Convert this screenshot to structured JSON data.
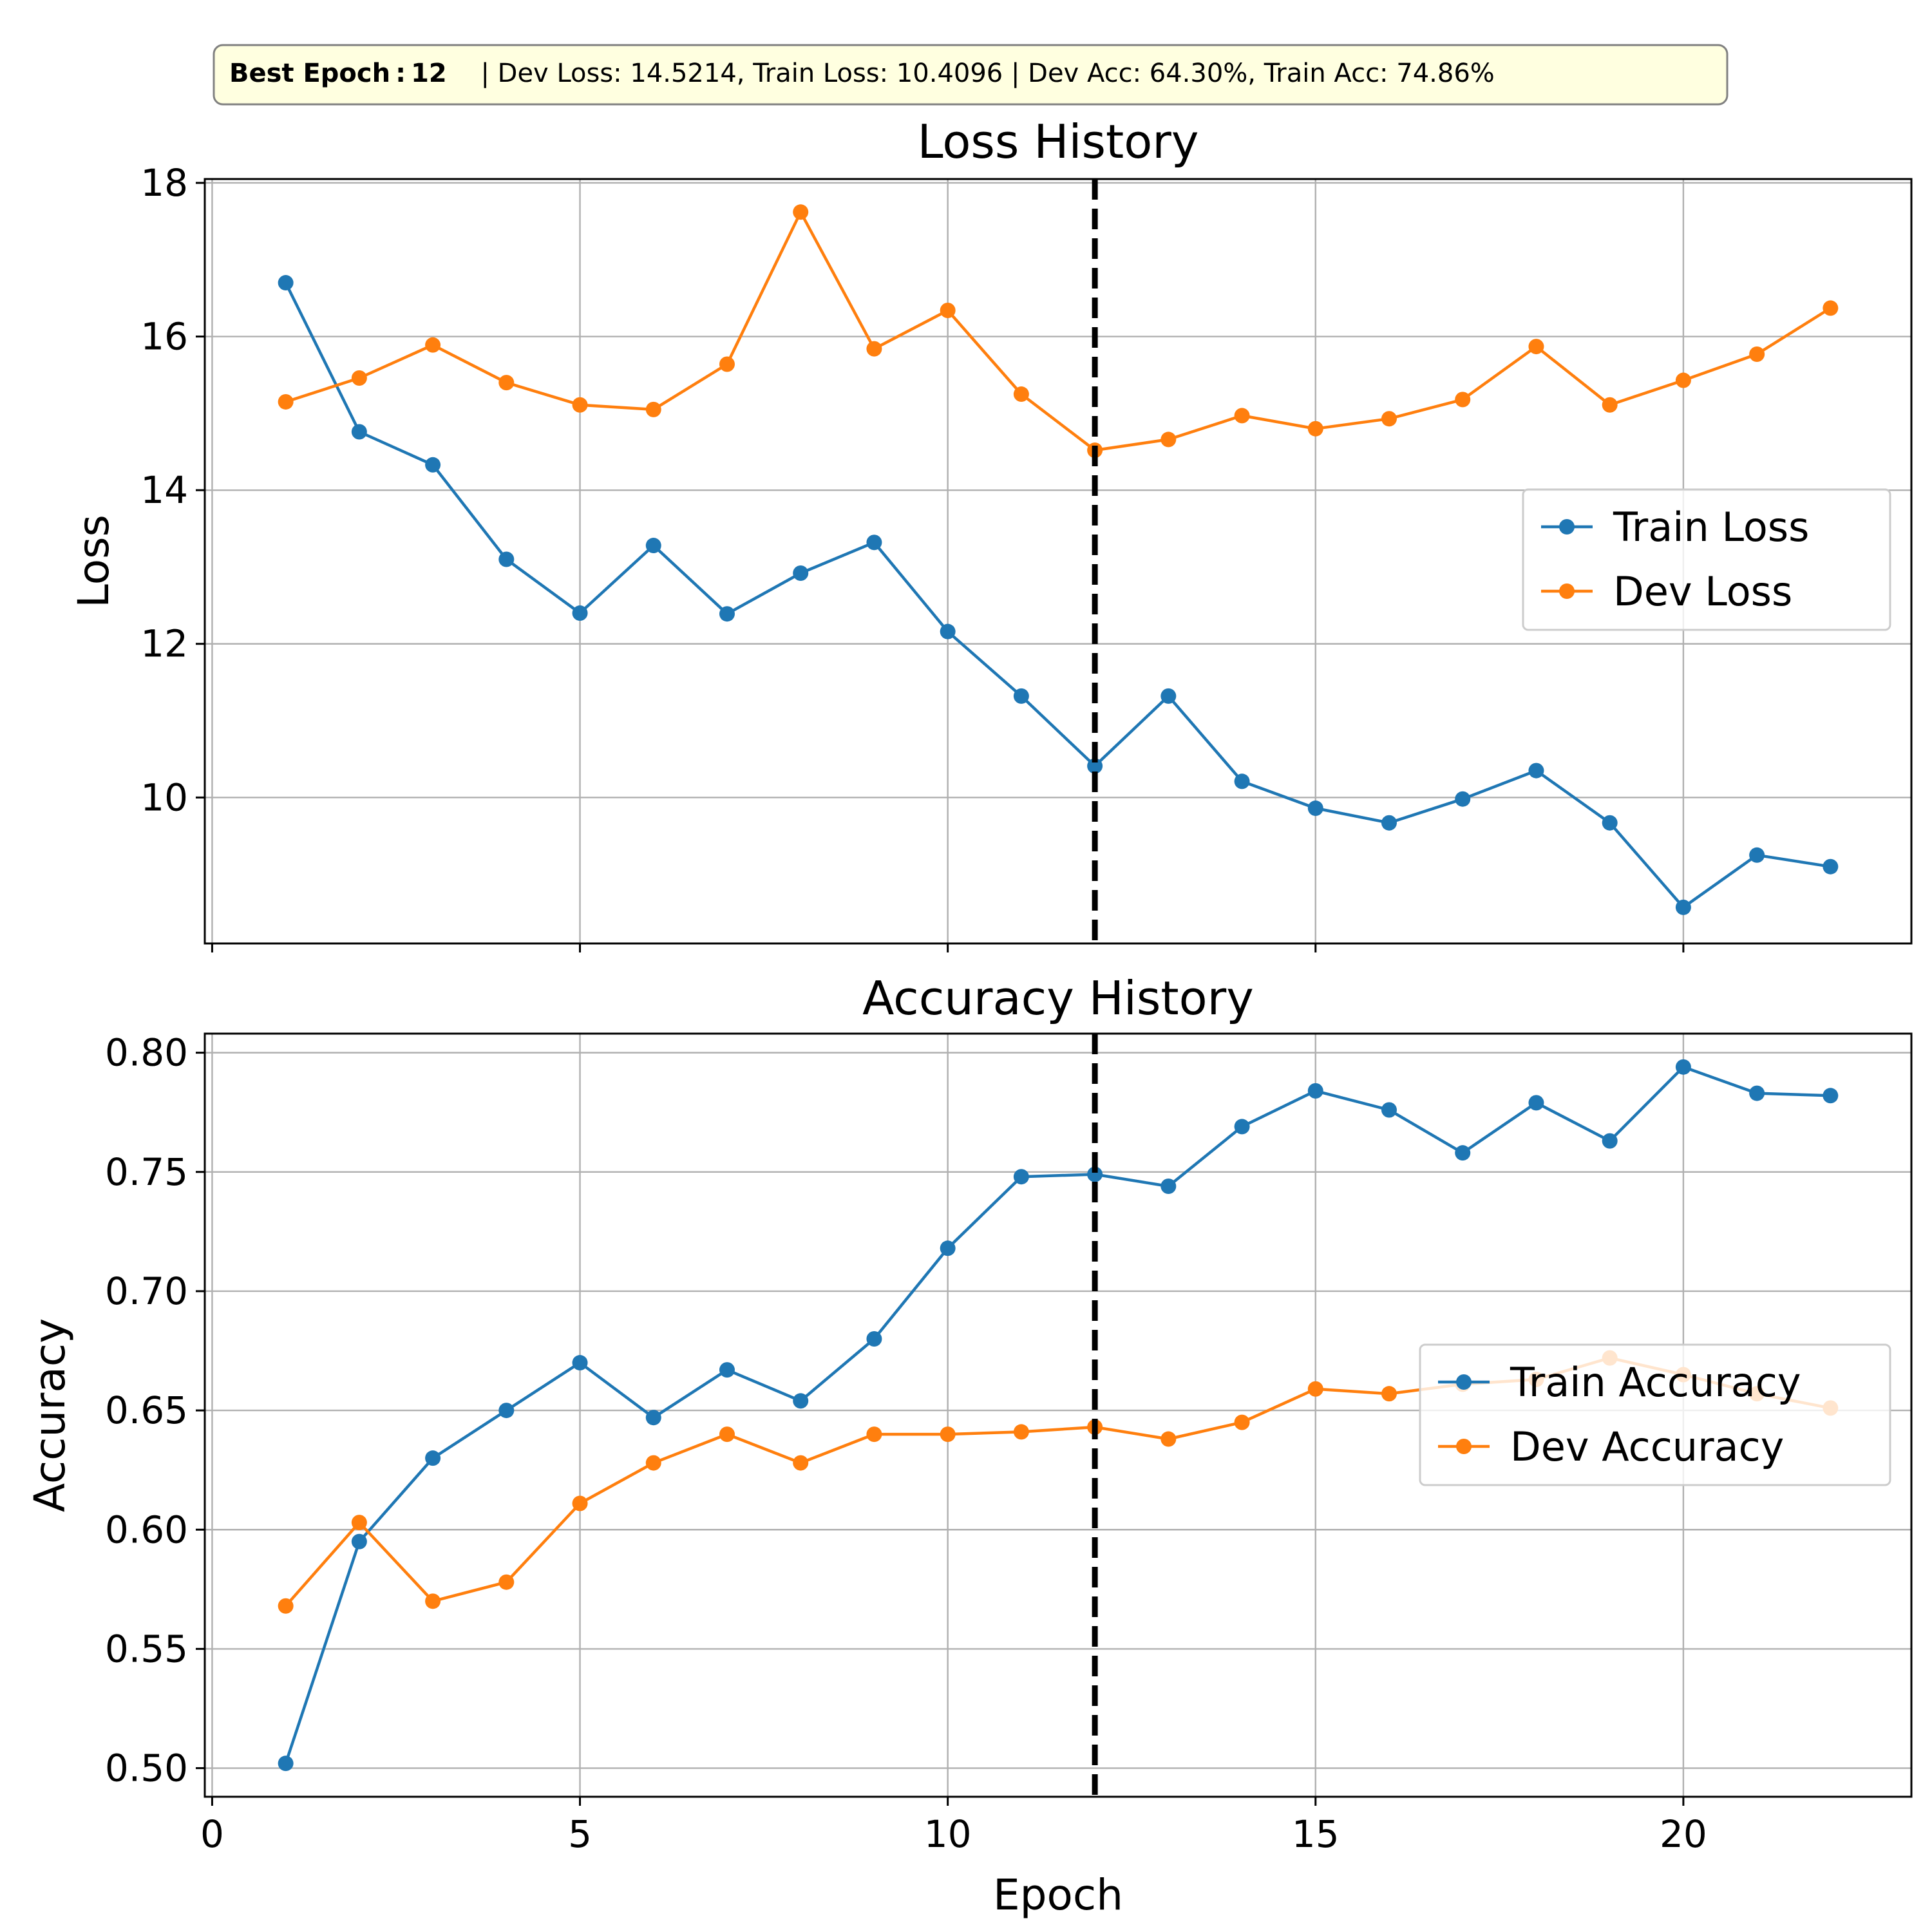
{
  "banner": {
    "best_label": "Best Epoch : 12",
    "rest": "|  Dev Loss: 14.5214, Train Loss: 10.4096  |  Dev Acc: 64.30%, Train Acc: 74.86%"
  },
  "chart_data": [
    {
      "type": "line",
      "title": "Loss History",
      "xlabel": "",
      "ylabel": "Loss",
      "xlim": [
        -0.1,
        23.1
      ],
      "ylim": [
        8.1,
        18.05
      ],
      "xticks": [
        0,
        5,
        10,
        15,
        20
      ],
      "yticks": [
        10,
        12,
        14,
        16,
        18
      ],
      "show_xtick_labels": false,
      "grid": true,
      "legend_position": "center-right",
      "best_epoch": 12,
      "x": [
        1,
        2,
        3,
        4,
        5,
        6,
        7,
        8,
        9,
        10,
        11,
        12,
        13,
        14,
        15,
        16,
        17,
        18,
        19,
        20,
        21,
        22
      ],
      "series": [
        {
          "name": "Train Loss",
          "color": "#1f77b4",
          "values": [
            16.7,
            14.76,
            14.33,
            13.1,
            12.4,
            13.28,
            12.39,
            12.92,
            13.32,
            12.16,
            11.32,
            10.41,
            11.32,
            10.21,
            9.86,
            9.67,
            9.98,
            10.35,
            9.67,
            8.57,
            9.25,
            9.1
          ]
        },
        {
          "name": "Dev Loss",
          "color": "#ff7f0e",
          "values": [
            15.15,
            15.46,
            15.89,
            15.4,
            15.11,
            15.05,
            15.64,
            17.62,
            15.84,
            16.34,
            15.25,
            14.52,
            14.66,
            14.97,
            14.8,
            14.93,
            15.18,
            15.87,
            15.11,
            15.43,
            15.77,
            16.37
          ]
        }
      ]
    },
    {
      "type": "line",
      "title": "Accuracy History",
      "xlabel": "Epoch",
      "ylabel": "Accuracy",
      "xlim": [
        -0.1,
        23.1
      ],
      "ylim": [
        0.488,
        0.808
      ],
      "xticks": [
        0,
        5,
        10,
        15,
        20
      ],
      "yticks": [
        0.5,
        0.55,
        0.6,
        0.65,
        0.7,
        0.75,
        0.8
      ],
      "show_xtick_labels": true,
      "grid": true,
      "legend_position": "center-right",
      "best_epoch": 12,
      "x": [
        1,
        2,
        3,
        4,
        5,
        6,
        7,
        8,
        9,
        10,
        11,
        12,
        13,
        14,
        15,
        16,
        17,
        18,
        19,
        20,
        21,
        22
      ],
      "series": [
        {
          "name": "Train Accuracy",
          "color": "#1f77b4",
          "values": [
            0.502,
            0.595,
            0.63,
            0.65,
            0.67,
            0.647,
            0.667,
            0.654,
            0.68,
            0.718,
            0.748,
            0.749,
            0.744,
            0.769,
            0.784,
            0.776,
            0.758,
            0.779,
            0.763,
            0.794,
            0.783,
            0.782
          ]
        },
        {
          "name": "Dev Accuracy",
          "color": "#ff7f0e",
          "values": [
            0.568,
            0.603,
            0.57,
            0.578,
            0.611,
            0.628,
            0.64,
            0.628,
            0.64,
            0.64,
            0.641,
            0.643,
            0.638,
            0.645,
            0.659,
            0.657,
            0.661,
            0.663,
            0.672,
            0.665,
            0.657,
            0.651
          ]
        }
      ]
    }
  ]
}
